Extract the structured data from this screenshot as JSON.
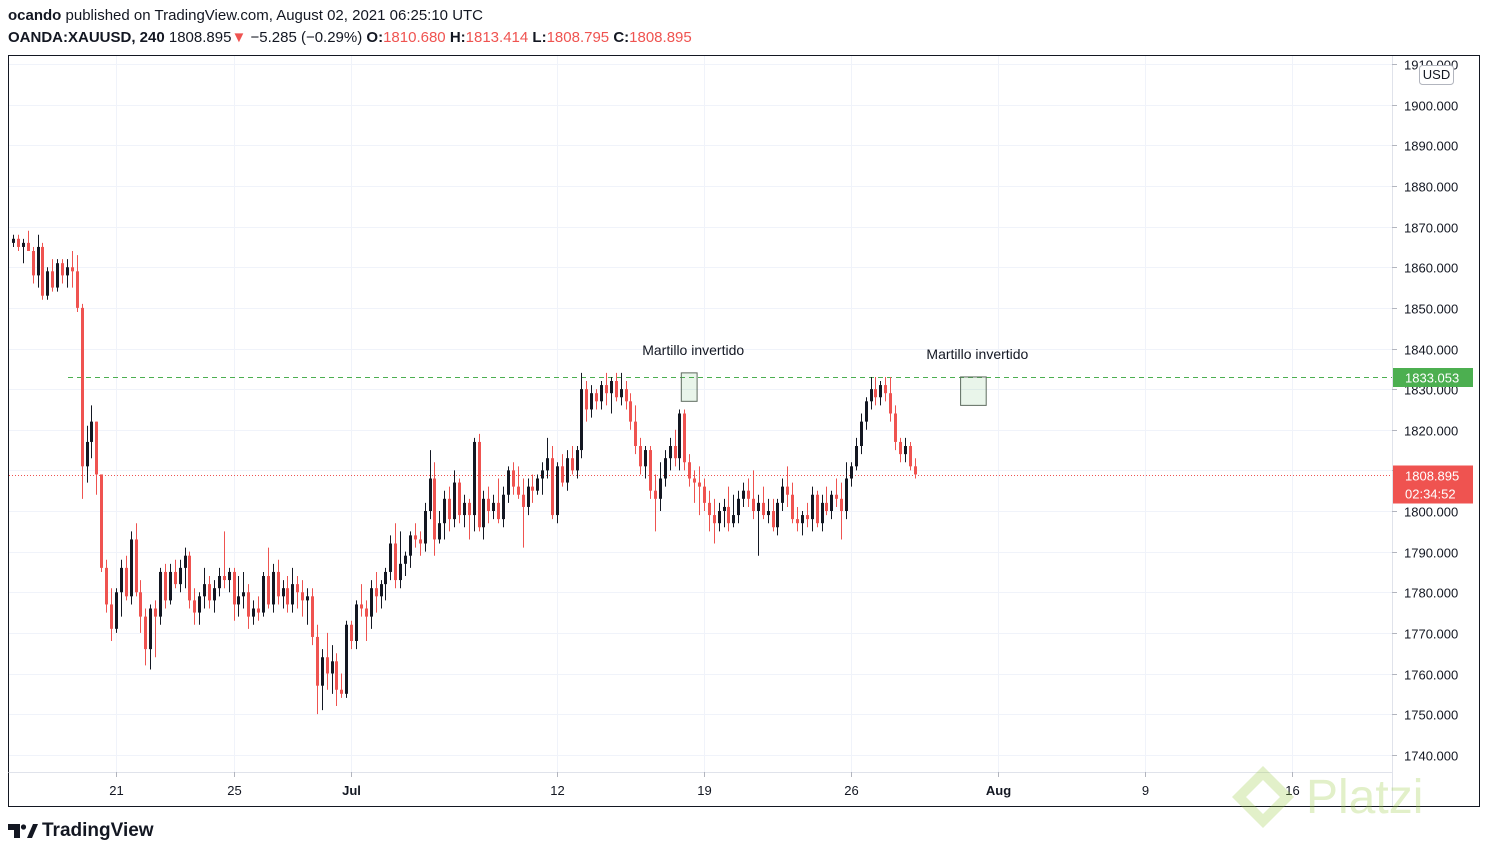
{
  "header": {
    "author": "ocando",
    "published_text": "published on TradingView.com, August 02, 2021 06:25:10 UTC",
    "symbol": "OANDA:XAUUSD, 240",
    "last": "1808.895",
    "change_arrow": "▼",
    "change": "−5.285 (−0.29%)",
    "o_label": "O:",
    "o_value": "1810.680",
    "h_label": "H:",
    "h_value": "1813.414",
    "l_label": "L:",
    "l_value": "1808.795",
    "c_label": "C:",
    "c_value": "1808.895"
  },
  "footer": {
    "brand": "TradingView",
    "watermark": "Platzi"
  },
  "colors": {
    "up": "#131722",
    "down": "#ef5350",
    "grid": "#f0f3fa",
    "resistance": "#4caf50",
    "price_tag": "#ef5350"
  },
  "chart_data": {
    "type": "candlestick",
    "currency": "USD",
    "ylim": [
      1736,
      1912
    ],
    "y_ticks": [
      1740,
      1750,
      1760,
      1770,
      1780,
      1790,
      1800,
      1810,
      1820,
      1830,
      1840,
      1850,
      1860,
      1870,
      1880,
      1890,
      1900,
      1910
    ],
    "y_tick_labels": [
      "1740.000",
      "1750.000",
      "1760.000",
      "1770.000",
      "1780.000",
      "1790.000",
      "1800.000",
      "1810.000",
      "1820.000",
      "1830.000",
      "1840.000",
      "1850.000",
      "1860.000",
      "1870.000",
      "1880.000",
      "1890.000",
      "1900.000",
      "1910.000"
    ],
    "x_ticks": [
      {
        "label": "21",
        "bar": 21
      },
      {
        "label": "25",
        "bar": 45
      },
      {
        "label": "Jul",
        "bar": 69,
        "bold": true
      },
      {
        "label": "12",
        "bar": 111
      },
      {
        "label": "19",
        "bar": 141
      },
      {
        "label": "26",
        "bar": 171
      },
      {
        "label": "Aug",
        "bar": 201,
        "bold": true
      },
      {
        "label": "9",
        "bar": 231
      },
      {
        "label": "16",
        "bar": 261
      }
    ],
    "resistance": {
      "value": 1833.053,
      "label": "1833.053"
    },
    "last_price": {
      "value": 1808.895,
      "label": "1808.895",
      "countdown": "02:34:52"
    },
    "annotations": [
      {
        "text": "Martillo invertido",
        "bar_from": 137,
        "bar_to": 139,
        "low": 1827,
        "high": 1834
      },
      {
        "text": "Martillo invertido",
        "bar_from": 194,
        "bar_to": 198,
        "low": 1826,
        "high": 1833
      }
    ],
    "ohlc": [
      [
        1866,
        1868,
        1865,
        1867
      ],
      [
        1867,
        1868,
        1864,
        1865
      ],
      [
        1865,
        1867,
        1861,
        1866
      ],
      [
        1866,
        1869,
        1864,
        1864
      ],
      [
        1864,
        1865,
        1856,
        1858
      ],
      [
        1858,
        1868,
        1855,
        1865
      ],
      [
        1865,
        1866,
        1852,
        1853
      ],
      [
        1853,
        1860,
        1852,
        1859
      ],
      [
        1859,
        1862,
        1854,
        1855
      ],
      [
        1855,
        1862,
        1854,
        1861
      ],
      [
        1861,
        1862,
        1856,
        1858
      ],
      [
        1858,
        1862,
        1855,
        1860
      ],
      [
        1860,
        1864,
        1855,
        1859
      ],
      [
        1859,
        1863,
        1849,
        1850
      ],
      [
        1850,
        1851,
        1803,
        1811
      ],
      [
        1811,
        1821,
        1807,
        1817
      ],
      [
        1817,
        1826,
        1813,
        1822
      ],
      [
        1822,
        1822,
        1804,
        1809
      ],
      [
        1809,
        1809,
        1785,
        1786
      ],
      [
        1786,
        1788,
        1775,
        1777
      ],
      [
        1777,
        1781,
        1768,
        1771
      ],
      [
        1771,
        1781,
        1770,
        1780
      ],
      [
        1780,
        1788,
        1774,
        1786
      ],
      [
        1786,
        1789,
        1778,
        1779
      ],
      [
        1779,
        1795,
        1777,
        1793
      ],
      [
        1793,
        1797,
        1779,
        1780
      ],
      [
        1780,
        1783,
        1770,
        1774
      ],
      [
        1774,
        1776,
        1762,
        1766
      ],
      [
        1766,
        1777,
        1761,
        1776
      ],
      [
        1776,
        1778,
        1764,
        1774
      ],
      [
        1774,
        1786,
        1772,
        1785
      ],
      [
        1785,
        1787,
        1776,
        1778
      ],
      [
        1778,
        1787,
        1777,
        1785
      ],
      [
        1785,
        1788,
        1781,
        1782
      ],
      [
        1782,
        1788,
        1780,
        1786
      ],
      [
        1786,
        1791,
        1781,
        1789
      ],
      [
        1789,
        1790,
        1776,
        1778
      ],
      [
        1778,
        1781,
        1772,
        1775
      ],
      [
        1775,
        1780,
        1772,
        1779
      ],
      [
        1779,
        1786,
        1776,
        1782
      ],
      [
        1782,
        1784,
        1776,
        1778
      ],
      [
        1778,
        1783,
        1775,
        1781
      ],
      [
        1781,
        1786,
        1779,
        1784
      ],
      [
        1784,
        1795,
        1781,
        1783
      ],
      [
        1783,
        1786,
        1780,
        1785
      ],
      [
        1785,
        1786,
        1773,
        1777
      ],
      [
        1777,
        1784,
        1774,
        1779
      ],
      [
        1779,
        1785,
        1776,
        1780
      ],
      [
        1780,
        1782,
        1771,
        1774
      ],
      [
        1774,
        1778,
        1772,
        1776
      ],
      [
        1776,
        1779,
        1773,
        1775
      ],
      [
        1775,
        1785,
        1774,
        1784
      ],
      [
        1784,
        1791,
        1776,
        1777
      ],
      [
        1777,
        1787,
        1775,
        1785
      ],
      [
        1785,
        1788,
        1777,
        1779
      ],
      [
        1779,
        1783,
        1776,
        1781
      ],
      [
        1781,
        1784,
        1775,
        1777
      ],
      [
        1777,
        1786,
        1775,
        1782
      ],
      [
        1782,
        1784,
        1776,
        1780
      ],
      [
        1780,
        1783,
        1774,
        1778
      ],
      [
        1778,
        1781,
        1772,
        1779
      ],
      [
        1779,
        1781,
        1767,
        1769
      ],
      [
        1769,
        1772,
        1750,
        1757
      ],
      [
        1757,
        1766,
        1751,
        1764
      ],
      [
        1764,
        1770,
        1756,
        1760
      ],
      [
        1760,
        1767,
        1755,
        1763
      ],
      [
        1763,
        1765,
        1752,
        1756
      ],
      [
        1756,
        1760,
        1754,
        1755
      ],
      [
        1755,
        1773,
        1754,
        1772
      ],
      [
        1772,
        1773,
        1766,
        1768
      ],
      [
        1768,
        1778,
        1766,
        1777
      ],
      [
        1777,
        1782,
        1774,
        1776
      ],
      [
        1776,
        1778,
        1768,
        1774
      ],
      [
        1774,
        1783,
        1771,
        1781
      ],
      [
        1781,
        1785,
        1775,
        1779
      ],
      [
        1779,
        1783,
        1776,
        1782
      ],
      [
        1782,
        1786,
        1778,
        1785
      ],
      [
        1785,
        1794,
        1783,
        1792
      ],
      [
        1792,
        1797,
        1781,
        1783
      ],
      [
        1783,
        1795,
        1781,
        1787
      ],
      [
        1787,
        1790,
        1784,
        1789
      ],
      [
        1789,
        1795,
        1786,
        1794
      ],
      [
        1794,
        1797,
        1791,
        1793
      ],
      [
        1793,
        1795,
        1789,
        1792
      ],
      [
        1792,
        1802,
        1790,
        1800
      ],
      [
        1800,
        1815,
        1798,
        1808
      ],
      [
        1808,
        1812,
        1789,
        1793
      ],
      [
        1793,
        1800,
        1792,
        1797
      ],
      [
        1797,
        1805,
        1793,
        1803
      ],
      [
        1803,
        1806,
        1795,
        1798
      ],
      [
        1798,
        1810,
        1796,
        1807
      ],
      [
        1807,
        1808,
        1797,
        1799
      ],
      [
        1799,
        1804,
        1796,
        1802
      ],
      [
        1802,
        1803,
        1793,
        1799
      ],
      [
        1799,
        1818,
        1795,
        1817
      ],
      [
        1817,
        1819,
        1795,
        1796
      ],
      [
        1796,
        1805,
        1793,
        1803
      ],
      [
        1803,
        1806,
        1797,
        1800
      ],
      [
        1800,
        1804,
        1798,
        1802
      ],
      [
        1802,
        1808,
        1797,
        1798
      ],
      [
        1798,
        1806,
        1796,
        1804
      ],
      [
        1804,
        1811,
        1802,
        1810
      ],
      [
        1810,
        1812,
        1804,
        1806
      ],
      [
        1806,
        1811,
        1803,
        1804
      ],
      [
        1804,
        1808,
        1791,
        1801
      ],
      [
        1801,
        1808,
        1799,
        1806
      ],
      [
        1806,
        1809,
        1802,
        1805
      ],
      [
        1805,
        1809,
        1804,
        1808
      ],
      [
        1808,
        1812,
        1804,
        1810
      ],
      [
        1810,
        1818,
        1808,
        1813
      ],
      [
        1813,
        1816,
        1798,
        1799
      ],
      [
        1799,
        1812,
        1797,
        1811
      ],
      [
        1811,
        1814,
        1806,
        1807
      ],
      [
        1807,
        1815,
        1805,
        1813
      ],
      [
        1813,
        1816,
        1809,
        1810
      ],
      [
        1810,
        1816,
        1808,
        1815
      ],
      [
        1815,
        1834,
        1813,
        1830
      ],
      [
        1830,
        1832,
        1822,
        1825
      ],
      [
        1825,
        1831,
        1823,
        1829
      ],
      [
        1829,
        1830,
        1825,
        1827
      ],
      [
        1827,
        1832,
        1825,
        1831
      ],
      [
        1831,
        1834,
        1826,
        1829
      ],
      [
        1829,
        1833,
        1824,
        1832
      ],
      [
        1832,
        1834,
        1827,
        1828
      ],
      [
        1828,
        1834,
        1826,
        1830
      ],
      [
        1830,
        1832,
        1825,
        1827
      ],
      [
        1827,
        1829,
        1820,
        1822
      ],
      [
        1822,
        1826,
        1814,
        1816
      ],
      [
        1816,
        1818,
        1809,
        1811
      ],
      [
        1811,
        1816,
        1808,
        1815
      ],
      [
        1815,
        1816,
        1803,
        1805
      ],
      [
        1805,
        1809,
        1795,
        1803
      ],
      [
        1803,
        1812,
        1800,
        1808
      ],
      [
        1808,
        1815,
        1806,
        1813
      ],
      [
        1813,
        1818,
        1810,
        1816
      ],
      [
        1816,
        1820,
        1811,
        1813
      ],
      [
        1813,
        1825,
        1810,
        1824
      ],
      [
        1824,
        1825,
        1810,
        1812
      ],
      [
        1812,
        1814,
        1806,
        1808
      ],
      [
        1808,
        1810,
        1802,
        1807
      ],
      [
        1807,
        1811,
        1799,
        1806
      ],
      [
        1806,
        1808,
        1800,
        1802
      ],
      [
        1802,
        1805,
        1795,
        1799
      ],
      [
        1799,
        1803,
        1792,
        1797
      ],
      [
        1797,
        1802,
        1795,
        1800
      ],
      [
        1800,
        1803,
        1796,
        1801
      ],
      [
        1801,
        1806,
        1795,
        1797
      ],
      [
        1797,
        1804,
        1796,
        1799
      ],
      [
        1799,
        1805,
        1797,
        1803
      ],
      [
        1803,
        1807,
        1801,
        1805
      ],
      [
        1805,
        1808,
        1801,
        1803
      ],
      [
        1803,
        1810,
        1798,
        1800
      ],
      [
        1800,
        1804,
        1789,
        1802
      ],
      [
        1802,
        1806,
        1798,
        1799
      ],
      [
        1799,
        1803,
        1797,
        1800
      ],
      [
        1800,
        1803,
        1795,
        1796
      ],
      [
        1796,
        1803,
        1794,
        1802
      ],
      [
        1802,
        1808,
        1800,
        1806
      ],
      [
        1806,
        1811,
        1801,
        1804
      ],
      [
        1804,
        1807,
        1797,
        1798
      ],
      [
        1798,
        1801,
        1795,
        1797
      ],
      [
        1797,
        1800,
        1794,
        1799
      ],
      [
        1799,
        1802,
        1796,
        1798
      ],
      [
        1798,
        1806,
        1795,
        1804
      ],
      [
        1804,
        1805,
        1796,
        1797
      ],
      [
        1797,
        1804,
        1795,
        1802
      ],
      [
        1802,
        1806,
        1799,
        1800
      ],
      [
        1800,
        1805,
        1798,
        1804
      ],
      [
        1804,
        1808,
        1801,
        1803
      ],
      [
        1803,
        1807,
        1793,
        1800
      ],
      [
        1800,
        1812,
        1798,
        1808
      ],
      [
        1808,
        1812,
        1806,
        1811
      ],
      [
        1811,
        1818,
        1810,
        1816
      ],
      [
        1816,
        1824,
        1814,
        1822
      ],
      [
        1822,
        1828,
        1820,
        1827
      ],
      [
        1827,
        1833,
        1825,
        1830
      ],
      [
        1830,
        1833,
        1826,
        1828
      ],
      [
        1828,
        1832,
        1826,
        1831
      ],
      [
        1831,
        1833,
        1827,
        1829
      ],
      [
        1829,
        1833,
        1822,
        1824
      ],
      [
        1824,
        1826,
        1815,
        1817
      ],
      [
        1817,
        1818,
        1812,
        1814
      ],
      [
        1814,
        1818,
        1812,
        1816
      ],
      [
        1816,
        1817,
        1810,
        1811
      ],
      [
        1811,
        1813,
        1808,
        1809
      ]
    ]
  }
}
